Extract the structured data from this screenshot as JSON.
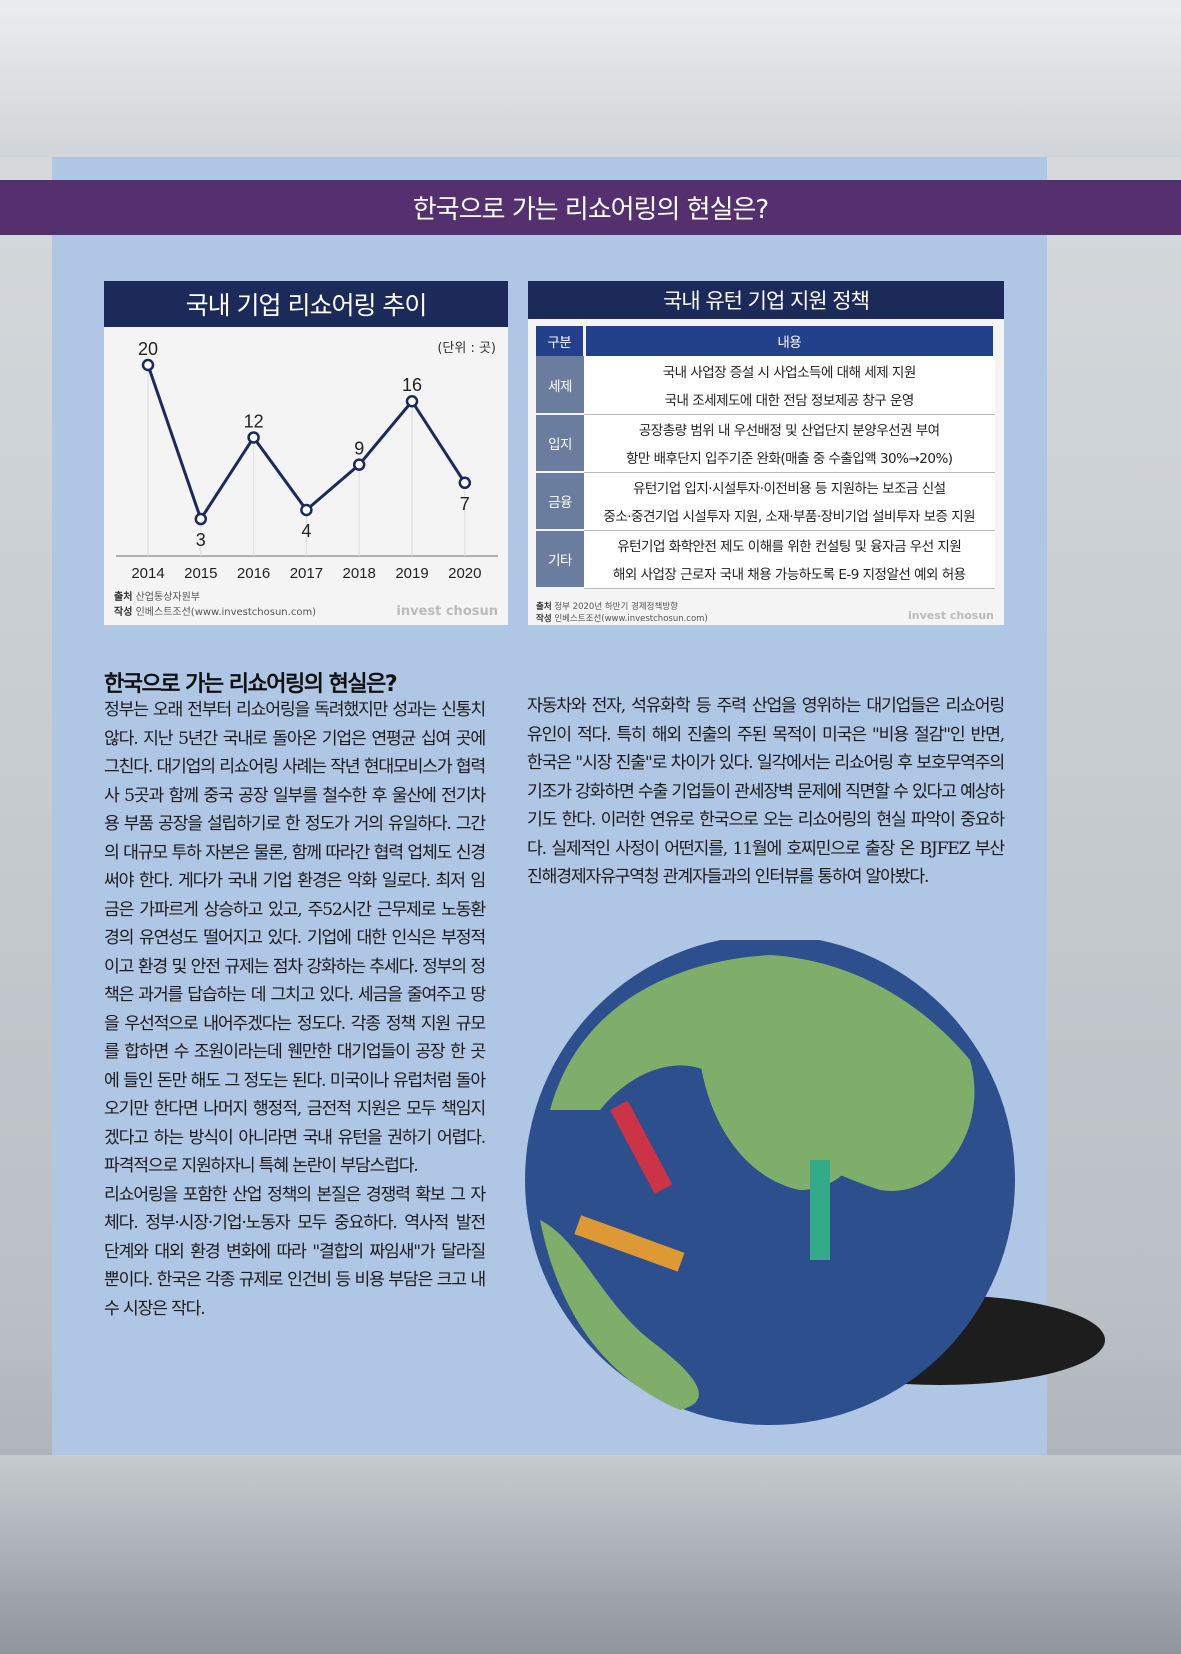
{
  "banner_title": "한국으로 가는 리쇼어링의 현실은?",
  "chart": {
    "title": "국내 기업 리쇼어링 추이",
    "unit": "(단위 : 곳)",
    "source_label": "출처",
    "source": "산업통상자원부",
    "author_label": "작성",
    "author": "인베스트조선(www.investchosun.com)",
    "brand": "invest chosun"
  },
  "chart_data": {
    "type": "line",
    "title": "국내 기업 리쇼어링 추이",
    "unit": "(단위 : 곳)",
    "categories": [
      "2014",
      "2015",
      "2016",
      "2017",
      "2018",
      "2019",
      "2020"
    ],
    "values": [
      20,
      3,
      12,
      4,
      9,
      16,
      7
    ],
    "color": "#1b2a58",
    "grid": false
  },
  "table": {
    "title": "국내 유턴 기업 지원 정책",
    "headers": [
      "구분",
      "내용"
    ],
    "rows": [
      {
        "category": "세제",
        "items": [
          "국내 사업장 증설 시 사업소득에 대해 세제 지원",
          "국내 조세제도에 대한 전담 정보제공 창구 운영"
        ]
      },
      {
        "category": "입지",
        "items": [
          "공장총량 범위 내 우선배정 및 산업단지 분양우선권 부여",
          "항만 배후단지 입주기준 완화(매출 중 수출입액 30%→20%)"
        ]
      },
      {
        "category": "금융",
        "items": [
          "유턴기업 입지·시설투자·이전비용 등 지원하는 보조금 신설",
          "중소·중견기업 시설투자 지원, 소재·부품·장비기업 설비투자 보증 지원"
        ]
      },
      {
        "category": "기타",
        "items": [
          "유턴기업 화학안전 제도 이해를 위한 컨설팅 및 융자금 우선 지원",
          "해외 사업장 근로자 국내 채용 가능하도록 E-9 지정알선 예외 허용"
        ]
      }
    ],
    "source_label": "출처",
    "source": "정부 2020년 하반기 경제정책방향",
    "author_label": "작성",
    "author": "인베스트조선(www.investchosun.com)",
    "brand": "invest chosun"
  },
  "article": {
    "title": "한국으로 가는 리쇼어링의 현실은?",
    "left_p1": "정부는 오래 전부터 리쇼어링을 독려했지만 성과는 신통치 않다. 지난 5년간 국내로 돌아온 기업은 연평균 십여 곳에 그친다. 대기업의 리쇼어링 사례는 작년 현대모비스가 협력사 5곳과 함께 중국 공장 일부를 철수한 후 울산에 전기차용 부품 공장을 설립하기로 한 정도가 거의 유일하다. 그간의 대규모 투하 자본은 물론, 함께 따라간 협력 업체도 신경써야 한다. 게다가 국내 기업 환경은 악화 일로다. 최저 임금은 가파르게 상승하고 있고, 주52시간 근무제로 노동환경의 유연성도 떨어지고 있다. 기업에 대한 인식은 부정적이고 환경 및 안전 규제는 점차 강화하는 추세다. 정부의 정책은 과거를 답습하는 데 그치고 있다. 세금을 줄여주고 땅을 우선적으로 내어주겠다는 정도다. 각종 정책 지원 규모를 합하면 수 조원이라는데 웬만한 대기업들이 공장 한 곳에 들인 돈만 해도 그 정도는 된다. 미국이나 유럽처럼 돌아오기만 한다면 나머지 행정적, 금전적 지원은 모두 책임지겠다고 하는 방식이 아니라면 국내 유턴을 권하기 어렵다. 파격적으로 지원하자니 특혜 논란이 부담스럽다.",
    "left_p2": "리쇼어링을 포함한 산업 정책의 본질은 경쟁력 확보 그 자체다. 정부·시장·기업·노동자 모두 중요하다. 역사적 발전 단계와 대외 환경 변화에 따라 \"결합의 짜임새\"가 달라질 뿐이다. 한국은 각종 규제로 인건비 등 비용 부담은 크고 내수 시장은 작다.",
    "right_p1": "자동차와 전자, 석유화학 등 주력 산업을 영위하는 대기업들은 리쇼어링 유인이 적다. 특히 해외 진출의 주된 목적이 미국은 \"비용 절감\"인 반면, 한국은 \"시장 진출\"로 차이가 있다. 일각에서는 리쇼어링 후 보호무역주의 기조가 강화하면 수출 기업들이 관세장벽 문제에 직면할 수 있다고 예상하기도 한다. 이러한 연유로 한국으로 오는 리쇼어링의 현실 파악이 중요하다. 실제적인 사정이 어떤지를, 11월에 호찌민으로 출장 온 BJFEZ 부산진해경제자유구역청 관계자들과의 인터뷰를 통하여 알아봤다."
  },
  "illustration": {
    "icon": "globe-with-cargo-ships-icon",
    "colors": {
      "ocean": "#2d4f8e",
      "land": "#7fae6a",
      "shadow": "#1d1d1d"
    }
  }
}
